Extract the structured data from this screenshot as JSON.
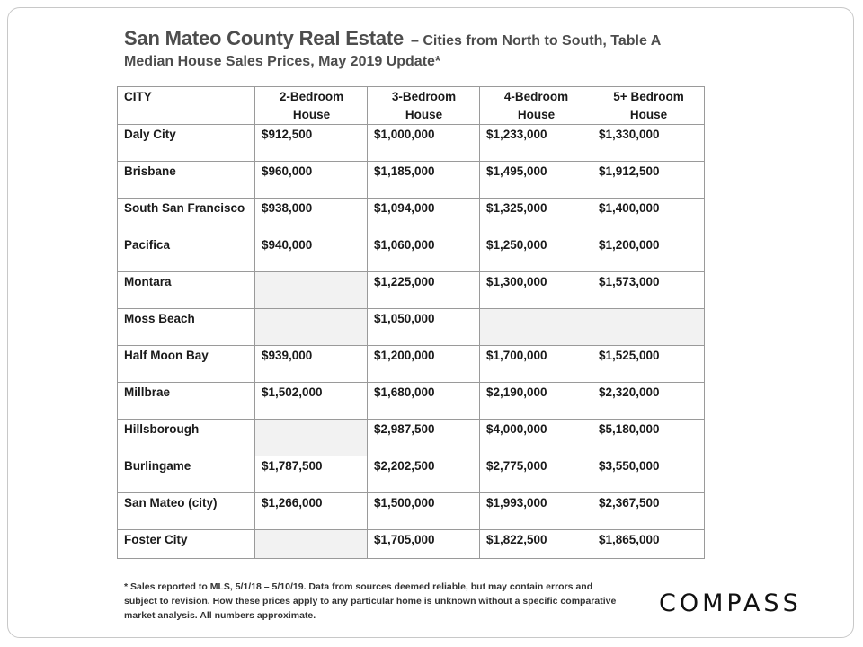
{
  "header": {
    "title_main": "San Mateo County Real Estate",
    "title_sub": "– Cities from North to South, Table A",
    "title_line2": "Median House Sales Prices, May 2019 Update*"
  },
  "table": {
    "columns": [
      {
        "line1": "CITY",
        "line2": ""
      },
      {
        "line1": "2-Bedroom",
        "line2": "House"
      },
      {
        "line1": "3-Bedroom",
        "line2": "House"
      },
      {
        "line1": "4-Bedroom",
        "line2": "House"
      },
      {
        "line1": "5+ Bedroom",
        "line2": "House"
      }
    ],
    "rows": [
      {
        "city": "Daly City",
        "values": [
          "$912,500",
          "$1,000,000",
          "$1,233,000",
          "$1,330,000"
        ]
      },
      {
        "city": "Brisbane",
        "values": [
          "$960,000",
          "$1,185,000",
          "$1,495,000",
          "$1,912,500"
        ]
      },
      {
        "city": "South San Francisco",
        "values": [
          "$938,000",
          "$1,094,000",
          "$1,325,000",
          "$1,400,000"
        ]
      },
      {
        "city": "Pacifica",
        "values": [
          "$940,000",
          "$1,060,000",
          "$1,250,000",
          "$1,200,000"
        ]
      },
      {
        "city": "Montara",
        "values": [
          "",
          "$1,225,000",
          "$1,300,000",
          "$1,573,000"
        ]
      },
      {
        "city": "Moss Beach",
        "values": [
          "",
          "$1,050,000",
          "",
          ""
        ]
      },
      {
        "city": "Half Moon Bay",
        "values": [
          "$939,000",
          "$1,200,000",
          "$1,700,000",
          "$1,525,000"
        ]
      },
      {
        "city": "Millbrae",
        "values": [
          "$1,502,000",
          "$1,680,000",
          "$2,190,000",
          "$2,320,000"
        ]
      },
      {
        "city": "Hillsborough",
        "values": [
          "",
          "$2,987,500",
          "$4,000,000",
          "$5,180,000"
        ]
      },
      {
        "city": "Burlingame",
        "values": [
          "$1,787,500",
          "$2,202,500",
          "$2,775,000",
          "$3,550,000"
        ]
      },
      {
        "city": "San Mateo (city)",
        "values": [
          "$1,266,000",
          "$1,500,000",
          "$1,993,000",
          "$2,367,500"
        ]
      },
      {
        "city": "Foster City",
        "values": [
          "",
          "$1,705,000",
          "$1,822,500",
          "$1,865,000"
        ]
      }
    ]
  },
  "footnote": "* Sales reported to MLS, 5/1/18 – 5/10/19. Data from sources deemed reliable, but may contain errors and subject to revision. How these prices apply to any particular home is unknown without a specific comparative market analysis.  All numbers approximate.",
  "logo": {
    "text": "COMPASS"
  },
  "colors": {
    "title": "#4d4d4d",
    "empty_cell": "#f2f2f2",
    "border": "#9a9a9a"
  }
}
